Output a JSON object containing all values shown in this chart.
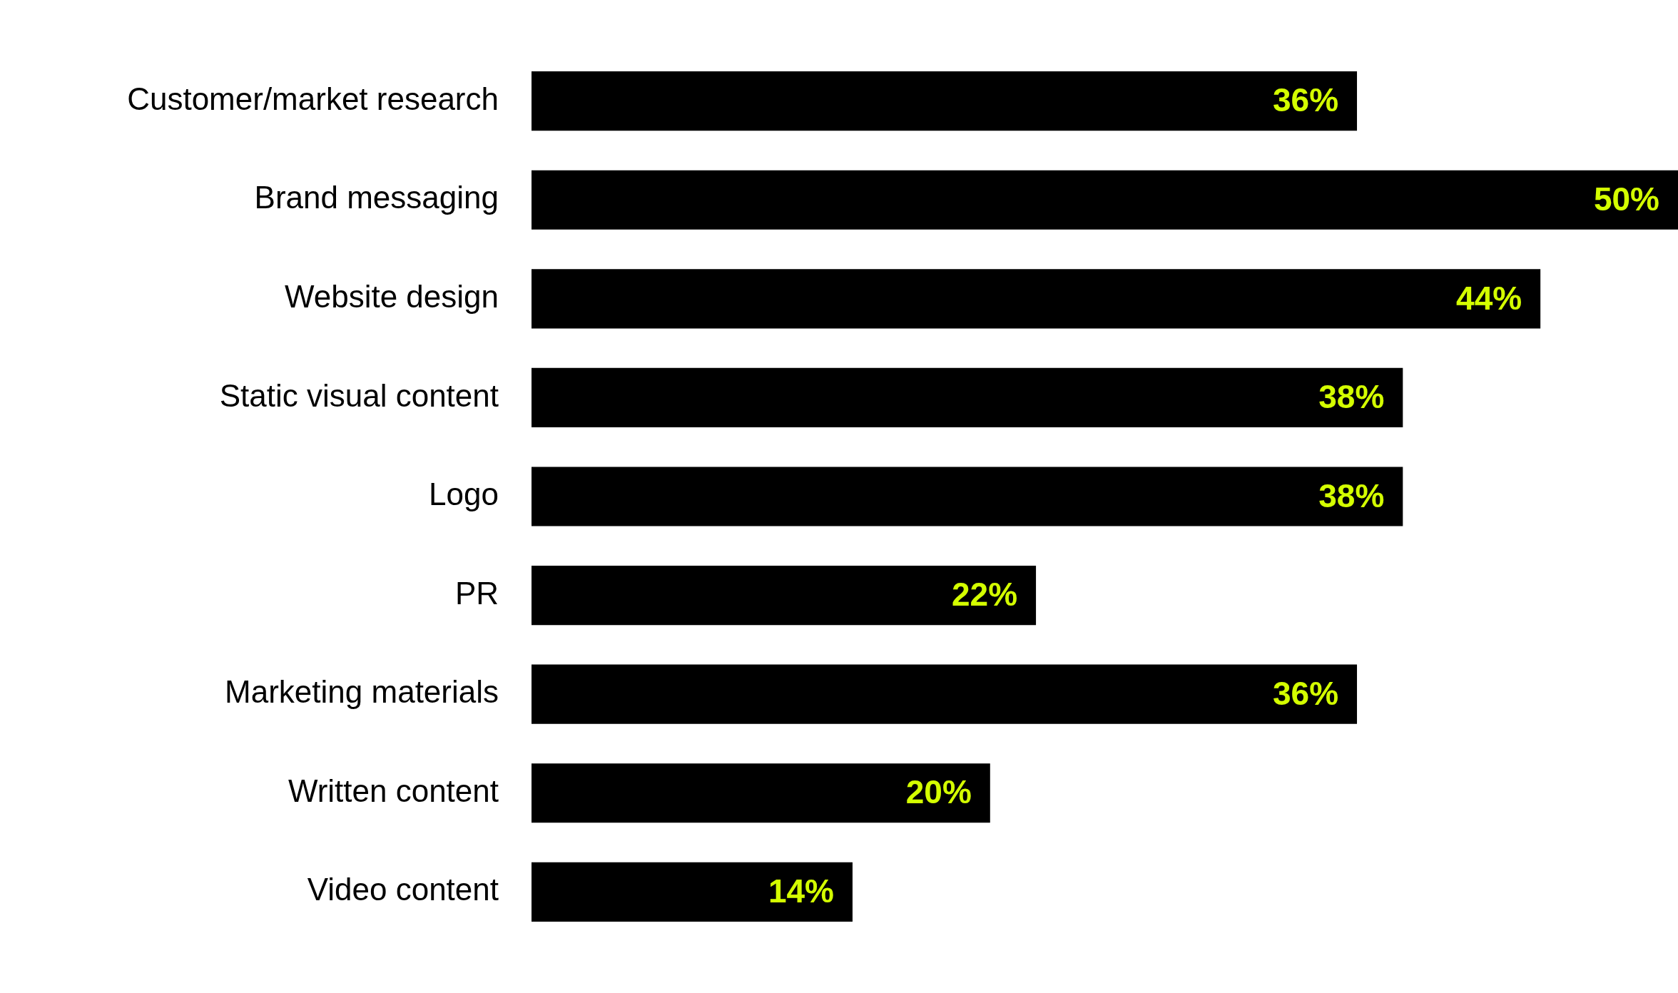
{
  "chart_data": {
    "type": "bar",
    "orientation": "horizontal",
    "categories": [
      "Customer/market research",
      "Brand messaging",
      "Website design",
      "Static visual content",
      "Logo",
      "PR",
      "Marketing materials",
      "Written content",
      "Video content"
    ],
    "values": [
      36,
      50,
      44,
      38,
      38,
      22,
      36,
      20,
      14
    ],
    "value_labels": [
      "36%",
      "50%",
      "44%",
      "38%",
      "38%",
      "22%",
      "36%",
      "20%",
      "14%"
    ],
    "color": "#000000",
    "xlim": [
      0,
      50
    ],
    "grid": false,
    "legend": false,
    "tick_labels": "y"
  }
}
